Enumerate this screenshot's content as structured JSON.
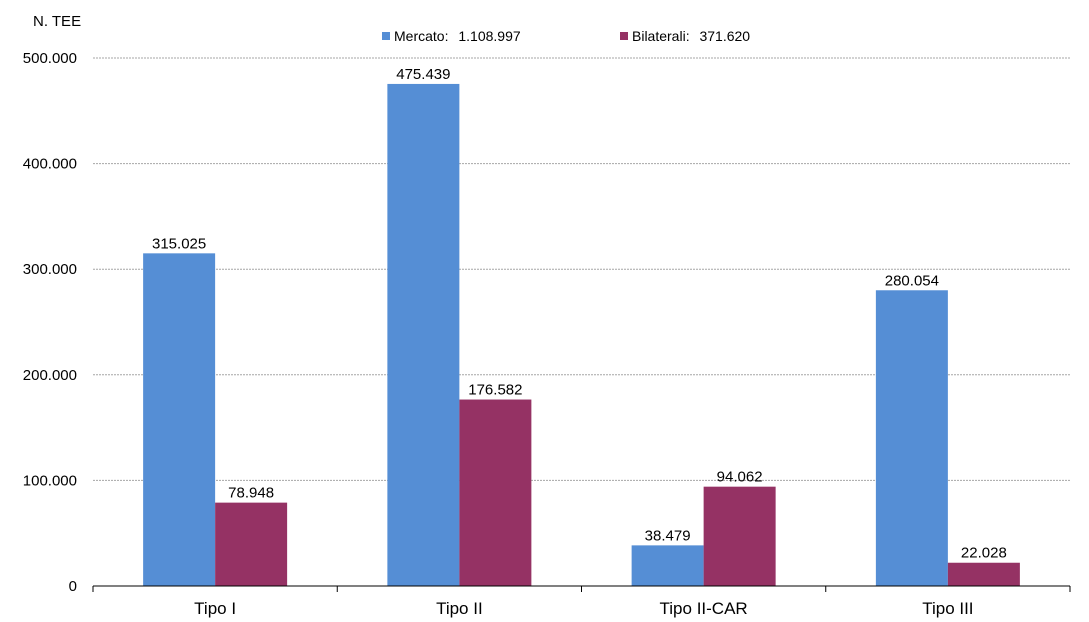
{
  "chart_data": {
    "type": "bar",
    "title": "",
    "unit_label": "N. TEE",
    "xlabel": "",
    "ylabel": "",
    "categories": [
      "Tipo I",
      "Tipo II",
      "Tipo II-CAR",
      "Tipo III"
    ],
    "series": [
      {
        "name": "Mercato",
        "legend_label": "Mercato:",
        "legend_total": "1.108.997",
        "color": "#558ED5",
        "values": [
          315025,
          475439,
          38479,
          280054
        ],
        "value_labels": [
          "315.025",
          "475.439",
          "38.479",
          "280.054"
        ]
      },
      {
        "name": "Bilaterali",
        "legend_label": "Bilaterali:",
        "legend_total": "371.620",
        "color": "#953264",
        "values": [
          78948,
          176582,
          94062,
          22028
        ],
        "value_labels": [
          "78.948",
          "176.582",
          "94.062",
          "22.028"
        ]
      }
    ],
    "ylim": [
      0,
      500000
    ],
    "yticks": [
      0,
      100000,
      200000,
      300000,
      400000,
      500000
    ],
    "ytick_labels": [
      "0",
      "100.000",
      "200.000",
      "300.000",
      "400.000",
      "500.000"
    ],
    "grid": true,
    "legend_position": "top"
  }
}
